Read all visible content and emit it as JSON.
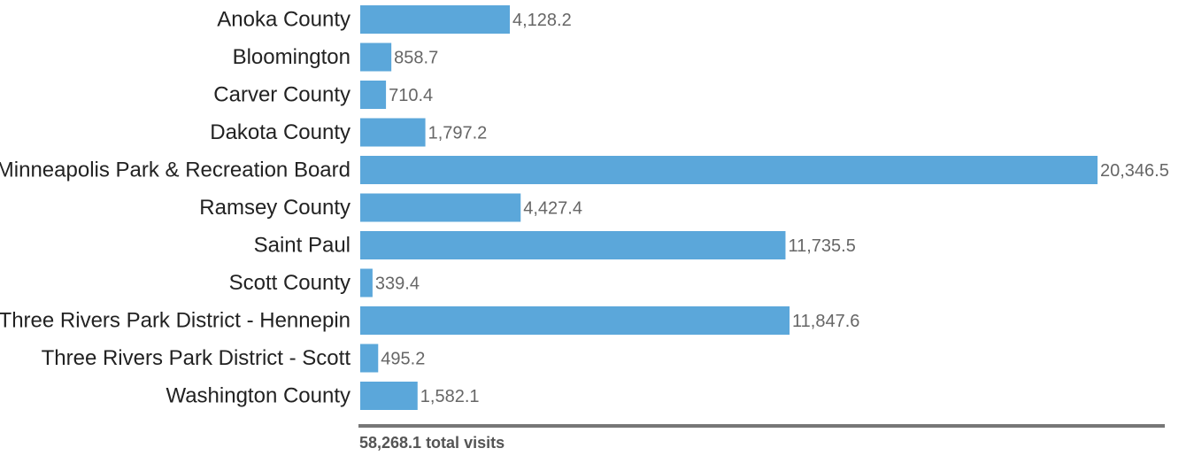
{
  "chart_data": {
    "type": "bar",
    "orientation": "horizontal",
    "categories": [
      "Anoka County",
      "Bloomington",
      "Carver County",
      "Dakota County",
      "Minneapolis Park & Recreation Board",
      "Ramsey County",
      "Saint Paul",
      "Scott County",
      "Three Rivers Park District - Hennepin",
      "Three Rivers Park District - Scott",
      "Washington County"
    ],
    "values": [
      4128.2,
      858.7,
      710.4,
      1797.2,
      20346.5,
      4427.4,
      11735.5,
      339.4,
      11847.6,
      495.2,
      1582.1
    ],
    "value_labels": [
      "4,128.2",
      "858.7",
      "710.4",
      "1,797.2",
      "20,346.5",
      "4,427.4",
      "11,735.5",
      "339.4",
      "11,847.6",
      "495.2",
      "1,582.1"
    ],
    "xlim": [
      0,
      20346.5
    ],
    "grid": false,
    "legend": "none",
    "bar_color": "#5ba7da",
    "baseline_color": "#777777",
    "total_label": "58,268.1 total visits"
  }
}
